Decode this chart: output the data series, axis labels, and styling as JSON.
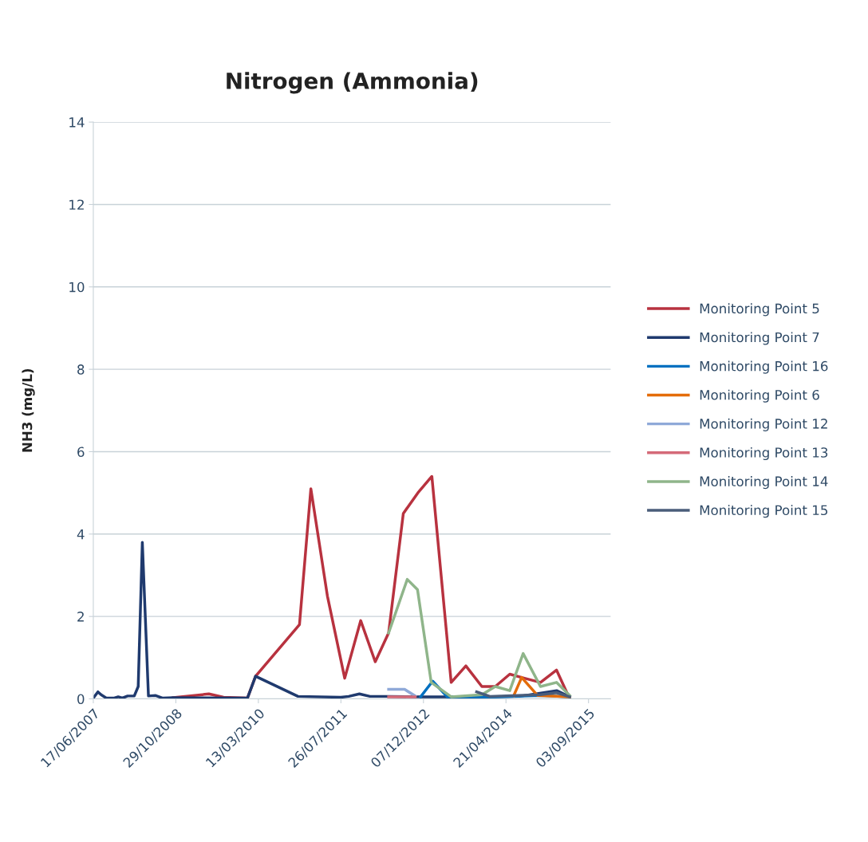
{
  "chart_data": {
    "type": "line",
    "title": "Nitrogen (Ammonia)",
    "ylabel": "NH3 (mg/L)",
    "xlim": [
      "2007-06-17",
      "2016-01-15"
    ],
    "xticks": [
      {
        "value": "2007-06-17",
        "label": "17/06/2007"
      },
      {
        "value": "2008-10-29",
        "label": "29/10/2008"
      },
      {
        "value": "2010-03-13",
        "label": "13/03/2010"
      },
      {
        "value": "2011-07-26",
        "label": "26/07/2011"
      },
      {
        "value": "2012-12-07",
        "label": "07/12/2012"
      },
      {
        "value": "2014-04-21",
        "label": "21/04/2014"
      },
      {
        "value": "2015-09-03",
        "label": "03/09/2015"
      }
    ],
    "ylim": [
      0,
      14
    ],
    "yticks": [
      0,
      2,
      4,
      6,
      8,
      10,
      12,
      14
    ],
    "grid": "y",
    "legend": "right",
    "marker": "none",
    "line_style": "solid",
    "series": [
      {
        "name": "Monitoring Point 5",
        "color": "#b8323f",
        "x": [
          "2008-10-12",
          "2009-05-17",
          "2009-08-14",
          "2010-01-06",
          "2010-02-24",
          "2010-11-17",
          "2011-01-25",
          "2011-05-05",
          "2011-08-18",
          "2011-11-23",
          "2012-02-19",
          "2012-05-10",
          "2012-08-07",
          "2012-11-03",
          "2013-01-27",
          "2013-05-24",
          "2013-08-21",
          "2013-11-26",
          "2014-02-15",
          "2014-05-14",
          "2014-08-11",
          "2014-11-16",
          "2015-02-21",
          "2015-04-26"
        ],
        "values": [
          0.03,
          0.12,
          0.04,
          0.02,
          0.55,
          1.8,
          5.1,
          2.5,
          0.5,
          1.9,
          0.9,
          1.6,
          4.5,
          5.0,
          5.4,
          0.4,
          0.8,
          0.3,
          0.3,
          0.6,
          0.5,
          0.4,
          0.7,
          0.14
        ]
      },
      {
        "name": "Monitoring Point 7",
        "color": "#1f3a6e",
        "x": [
          "2007-06-17",
          "2007-07-15",
          "2007-08-03",
          "2007-09-04",
          "2007-10-22",
          "2007-11-15",
          "2007-12-10",
          "2008-01-11",
          "2008-02-20",
          "2008-03-15",
          "2008-04-09",
          "2008-05-16",
          "2008-06-29",
          "2008-08-08",
          "2008-10-12",
          "2010-01-06",
          "2010-02-24",
          "2010-11-08",
          "2011-07-25",
          "2011-09-11",
          "2011-11-15",
          "2012-01-18",
          "2012-05-02",
          "2012-12-06",
          "2013-11-10",
          "2014-07-10",
          "2015-02-22",
          "2015-05-11"
        ],
        "values": [
          0.02,
          0.17,
          0.1,
          0.02,
          0.02,
          0.05,
          0.02,
          0.07,
          0.07,
          0.3,
          3.8,
          0.07,
          0.08,
          0.02,
          0.03,
          0.02,
          0.55,
          0.06,
          0.04,
          0.06,
          0.12,
          0.06,
          0.06,
          0.05,
          0.05,
          0.06,
          0.2,
          0.05
        ]
      },
      {
        "name": "Monitoring Point 16",
        "color": "#0070c0",
        "x": [
          "2012-11-20",
          "2013-02-01",
          "2013-04-30",
          "2014-02-15",
          "2014-11-16",
          "2015-05-12"
        ],
        "values": [
          0.05,
          0.43,
          0.05,
          0.05,
          0.08,
          0.05
        ]
      },
      {
        "name": "Monitoring Point 6",
        "color": "#e46c0a",
        "x": [
          "2014-06-07",
          "2014-07-25",
          "2014-10-30",
          "2015-05-12"
        ],
        "values": [
          0.08,
          0.52,
          0.08,
          0.05
        ]
      },
      {
        "name": "Monitoring Point 12",
        "color": "#8fa9d8",
        "x": [
          "2012-05-10",
          "2012-08-15",
          "2012-10-18"
        ],
        "values": [
          0.23,
          0.23,
          0.07
        ]
      },
      {
        "name": "Monitoring Point 13",
        "color": "#d46a78",
        "x": [
          "2012-05-10",
          "2012-10-18"
        ],
        "values": [
          0.05,
          0.05
        ]
      },
      {
        "name": "Monitoring Point 14",
        "color": "#8fb58a",
        "x": [
          "2012-05-10",
          "2012-08-31",
          "2012-11-01",
          "2013-01-23",
          "2013-05-24",
          "2013-11-26",
          "2014-02-15",
          "2014-05-14",
          "2014-08-03",
          "2014-11-16",
          "2015-02-21",
          "2015-05-12"
        ],
        "values": [
          1.6,
          2.9,
          2.65,
          0.4,
          0.05,
          0.1,
          0.3,
          0.2,
          1.1,
          0.3,
          0.4,
          0.08
        ]
      },
      {
        "name": "Monitoring Point 15",
        "color": "#4a5d7a",
        "x": [
          "2013-10-25",
          "2014-01-13",
          "2014-11-16",
          "2015-02-21",
          "2015-05-12"
        ],
        "values": [
          0.17,
          0.06,
          0.1,
          0.15,
          0.05
        ]
      }
    ]
  }
}
